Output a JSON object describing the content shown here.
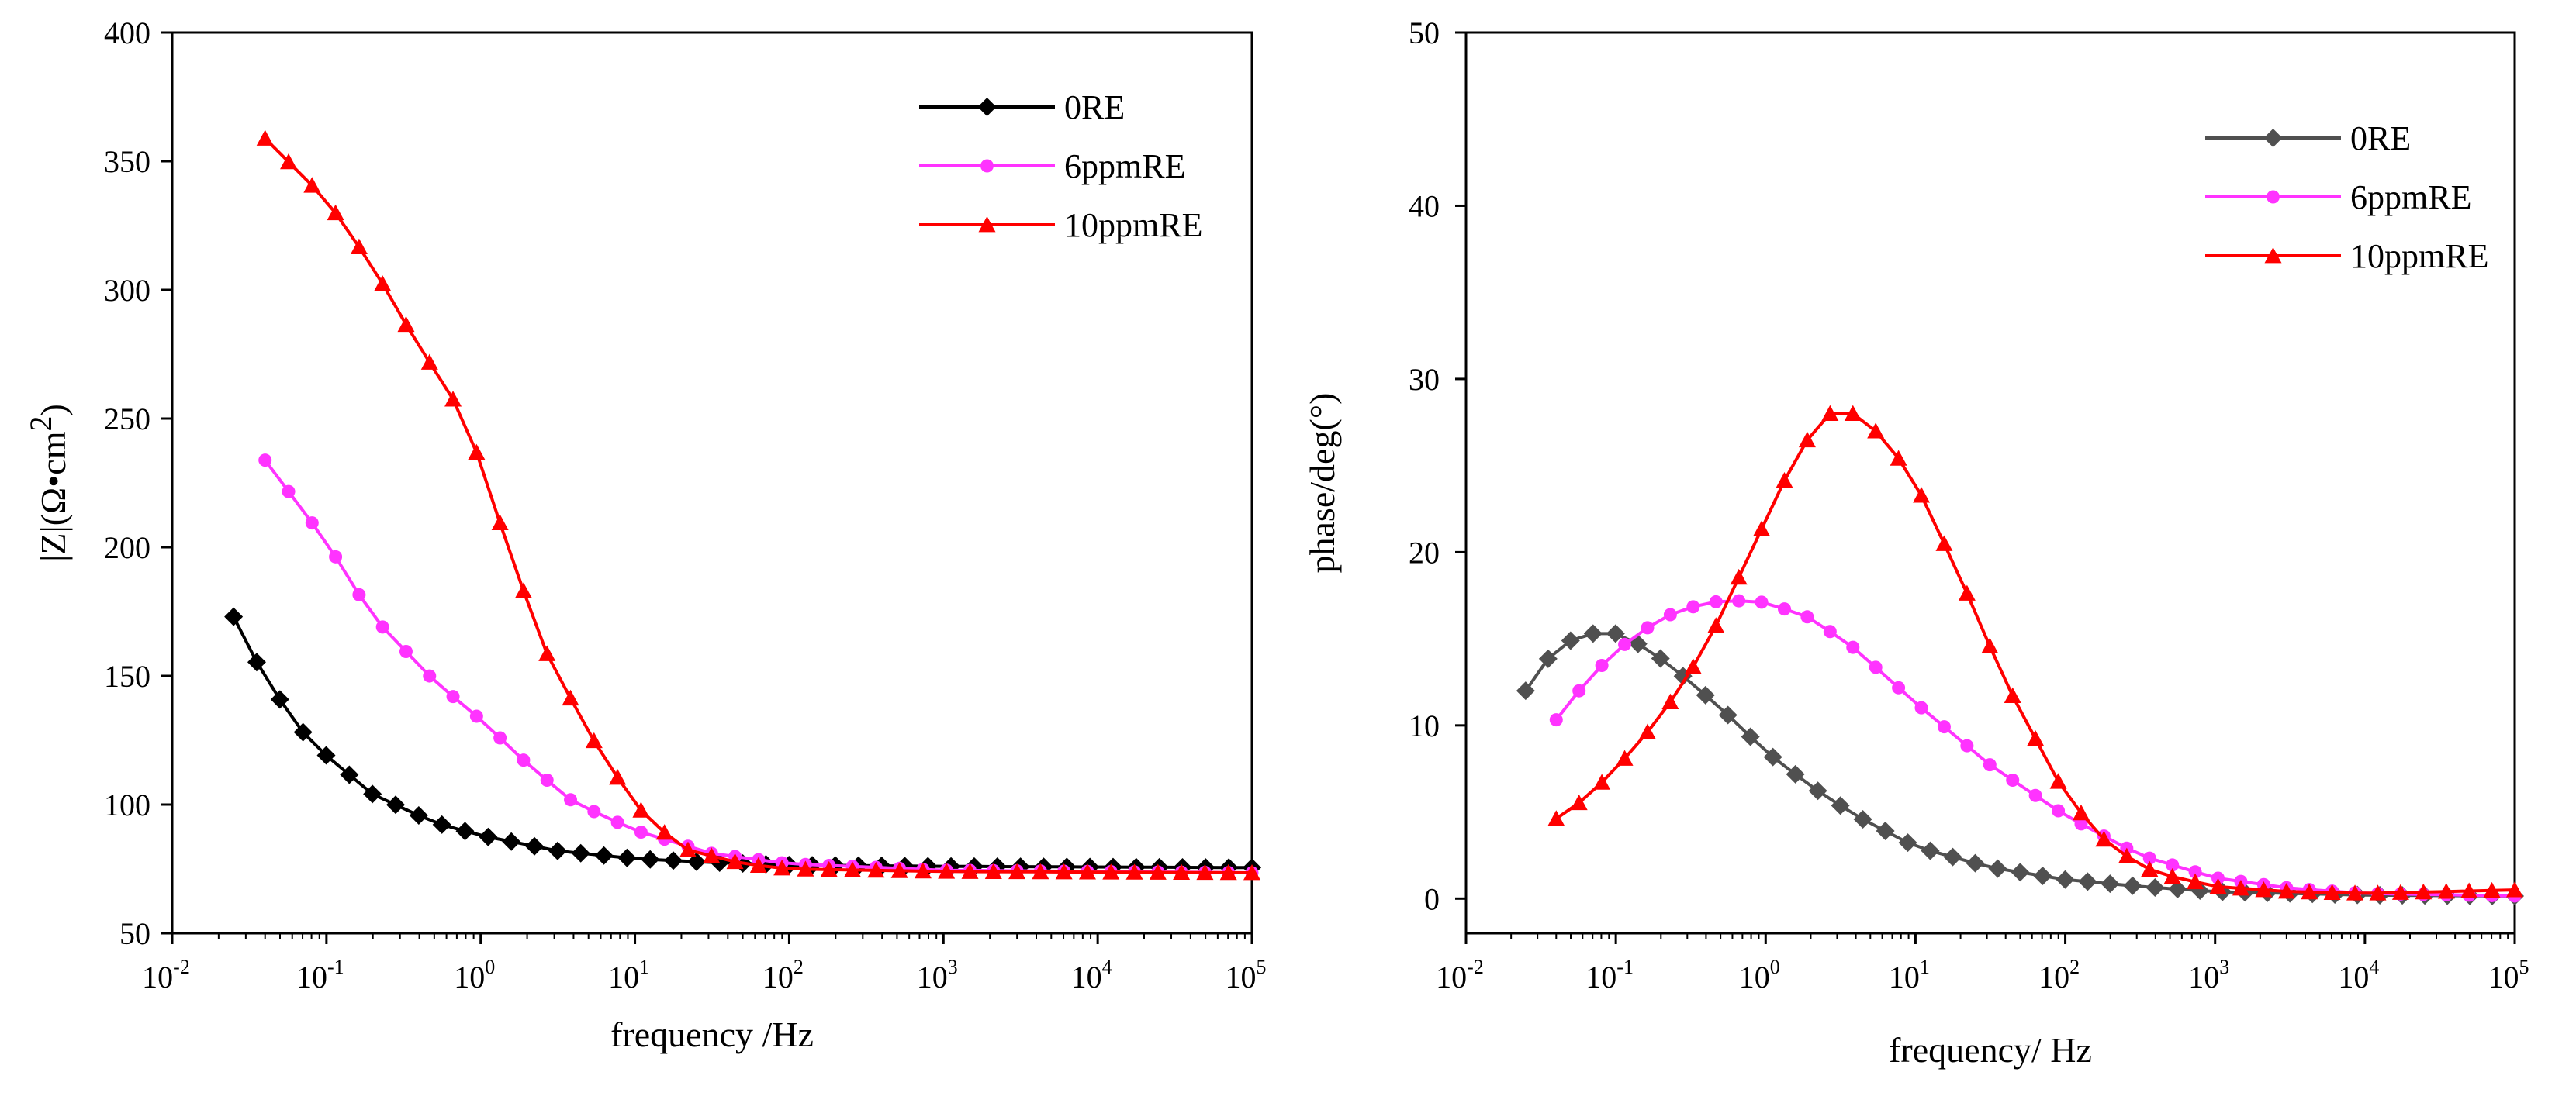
{
  "chart_data": [
    {
      "type": "line",
      "xscale": "log",
      "xlim": [
        0.01,
        100000
      ],
      "ylim": [
        50,
        400
      ],
      "yticks": [
        50,
        100,
        150,
        200,
        250,
        300,
        350,
        400
      ],
      "xtick_labels": [
        {
          "base": "10",
          "exp": "-2"
        },
        {
          "base": "10",
          "exp": "-1"
        },
        {
          "base": "10",
          "exp": "0"
        },
        {
          "base": "10",
          "exp": "1"
        },
        {
          "base": "10",
          "exp": "2"
        },
        {
          "base": "10",
          "exp": "3"
        },
        {
          "base": "10",
          "exp": "4"
        },
        {
          "base": "10",
          "exp": "5"
        }
      ],
      "xlabel": "frequency /Hz",
      "ylabel": "|Z|(Ω•cm²)",
      "ylabel_main": "|Z|(Ω•cm",
      "ylabel_sup": "2",
      "ylabel_end": ")",
      "legend_position": "top-right",
      "series": [
        {
          "name": "0RE",
          "color": "#000000",
          "marker": "diamond",
          "fmin": 0.025,
          "n": 45,
          "knots": [
            [
              -1.6,
              173
            ],
            [
              -1.5,
              160
            ],
            [
              -1.2,
              131
            ],
            [
              -1.0,
              119
            ],
            [
              -0.7,
              104
            ],
            [
              -0.3,
              93
            ],
            [
              0.0,
              88
            ],
            [
              0.5,
              82
            ],
            [
              1.0,
              79
            ],
            [
              1.5,
              77.5
            ],
            [
              2.0,
              76.5
            ],
            [
              3.0,
              76
            ],
            [
              5.0,
              75.5
            ]
          ]
        },
        {
          "name": "6ppmRE",
          "color": "#ff33ff",
          "marker": "circle",
          "fmin": 0.04,
          "n": 43,
          "knots": [
            [
              -1.4,
              234
            ],
            [
              -1.2,
              218
            ],
            [
              -1.0,
              202
            ],
            [
              -0.7,
              173
            ],
            [
              -0.3,
              148
            ],
            [
              0.0,
              133
            ],
            [
              0.3,
              116
            ],
            [
              0.6,
              101
            ],
            [
              1.0,
              90
            ],
            [
              1.5,
              81
            ],
            [
              2.0,
              77
            ],
            [
              3.0,
              74.5
            ],
            [
              5.0,
              73.5
            ]
          ]
        },
        {
          "name": "10ppmRE",
          "color": "#ff0000",
          "marker": "triangle",
          "fmin": 0.04,
          "n": 43,
          "knots": [
            [
              -1.4,
              359
            ],
            [
              -1.2,
              347
            ],
            [
              -1.0,
              335
            ],
            [
              -0.7,
              309
            ],
            [
              -0.45,
              283
            ],
            [
              -0.1,
              250
            ],
            [
              0.15,
              205
            ],
            [
              0.4,
              162
            ],
            [
              0.7,
              128
            ],
            [
              1.0,
              100
            ],
            [
              1.3,
              83
            ],
            [
              1.7,
              77
            ],
            [
              2.0,
              75
            ],
            [
              3.0,
              74
            ],
            [
              5.0,
              73.5
            ]
          ]
        }
      ]
    },
    {
      "type": "line",
      "xscale": "log",
      "xlim": [
        0.01,
        100000
      ],
      "ylim": [
        -2,
        50
      ],
      "yticks": [
        0,
        10,
        20,
        30,
        40,
        50
      ],
      "xtick_labels": [
        {
          "base": "10",
          "exp": "-2"
        },
        {
          "base": "10",
          "exp": "-1"
        },
        {
          "base": "10",
          "exp": "0"
        },
        {
          "base": "10",
          "exp": "1"
        },
        {
          "base": "10",
          "exp": "2"
        },
        {
          "base": "10",
          "exp": "3"
        },
        {
          "base": "10",
          "exp": "4"
        },
        {
          "base": "10",
          "exp": "5"
        }
      ],
      "xlabel": "frequency/ Hz",
      "ylabel": "phase/deg(°)",
      "legend_position": "top-right",
      "series": [
        {
          "name": "0RE",
          "color": "#505050",
          "marker": "diamond",
          "fmin": 0.025,
          "n": 45,
          "knots": [
            [
              -1.6,
              12
            ],
            [
              -1.4,
              14.5
            ],
            [
              -1.2,
              15.3
            ],
            [
              -1.0,
              15.3
            ],
            [
              -0.8,
              14.5
            ],
            [
              -0.6,
              13.2
            ],
            [
              -0.3,
              11
            ],
            [
              0.0,
              8.5
            ],
            [
              0.3,
              6.5
            ],
            [
              0.6,
              4.8
            ],
            [
              1.0,
              3.0
            ],
            [
              1.5,
              1.8
            ],
            [
              2.0,
              1.1
            ],
            [
              2.5,
              0.7
            ],
            [
              3.0,
              0.4
            ],
            [
              4.0,
              0.2
            ],
            [
              5.0,
              0.15
            ]
          ]
        },
        {
          "name": "6ppmRE",
          "color": "#ff33ff",
          "marker": "circle",
          "fmin": 0.04,
          "n": 43,
          "knots": [
            [
              -1.4,
              10.3
            ],
            [
              -1.2,
              12.5
            ],
            [
              -1.0,
              14.3
            ],
            [
              -0.7,
              16.2
            ],
            [
              -0.4,
              17.1
            ],
            [
              -0.2,
              17.2
            ],
            [
              0.0,
              17.1
            ],
            [
              0.3,
              16.2
            ],
            [
              0.6,
              14.4
            ],
            [
              1.0,
              11.3
            ],
            [
              1.5,
              7.7
            ],
            [
              2.0,
              4.8
            ],
            [
              2.5,
              2.5
            ],
            [
              3.0,
              1.2
            ],
            [
              3.5,
              0.6
            ],
            [
              4.0,
              0.3
            ],
            [
              5.0,
              0.15
            ]
          ]
        },
        {
          "name": "10ppmRE",
          "color": "#ff0000",
          "marker": "triangle",
          "fmin": 0.04,
          "n": 43,
          "knots": [
            [
              -1.4,
              4.6
            ],
            [
              -1.2,
              5.8
            ],
            [
              -1.0,
              7.5
            ],
            [
              -0.7,
              10.5
            ],
            [
              -0.4,
              14.5
            ],
            [
              -0.1,
              20
            ],
            [
              0.2,
              25.5
            ],
            [
              0.4,
              28
            ],
            [
              0.6,
              28
            ],
            [
              0.8,
              26.5
            ],
            [
              1.0,
              24
            ],
            [
              1.3,
              18.5
            ],
            [
              1.6,
              12.5
            ],
            [
              2.0,
              6
            ],
            [
              2.3,
              3
            ],
            [
              2.6,
              1.5
            ],
            [
              3.0,
              0.7
            ],
            [
              3.5,
              0.4
            ],
            [
              4.0,
              0.3
            ],
            [
              5.0,
              0.5
            ]
          ]
        }
      ]
    }
  ]
}
